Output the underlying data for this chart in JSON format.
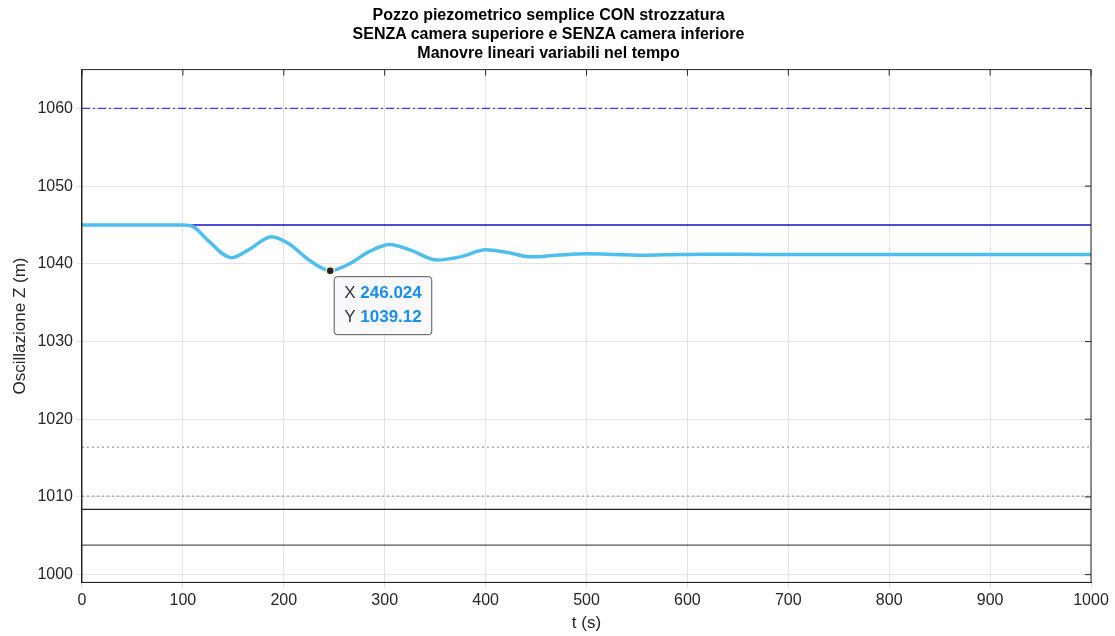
{
  "chart_data": {
    "type": "line",
    "title": "Pozzo piezometrico semplice CON strozzatura\nSENZA camera superiore e SENZA camera inferiore\nManovre lineari variabili nel tempo",
    "xlabel": "t (s)",
    "ylabel": "Oscillazione Z (m)",
    "series": [
      {
        "color": "#4dbeee",
        "x": [
          0,
          50,
          100,
          110,
          125,
          148,
          165,
          188,
          205,
          225,
          246,
          265,
          285,
          305,
          325,
          352,
          375,
          400,
          420,
          445,
          470,
          500,
          530,
          555,
          590,
          620,
          680,
          750,
          850,
          1000
        ],
        "values": [
          1045,
          1045,
          1045,
          1044.8,
          1043,
          1040.8,
          1041.8,
          1043.5,
          1042.6,
          1040.5,
          1039.12,
          1040,
          1041.6,
          1042.5,
          1041.8,
          1040.5,
          1040.9,
          1041.8,
          1041.5,
          1040.9,
          1041.1,
          1041.3,
          1041.2,
          1041.1,
          1041.2,
          1041.25,
          1041.2,
          1041.2,
          1041.2,
          1041.2
        ]
      }
    ],
    "ref_lines": [
      {
        "axis": "y",
        "value": 1060,
        "color": "#3b3bdf",
        "line_style": "dashdot"
      },
      {
        "axis": "y",
        "value": 1045,
        "color": "#1010c8",
        "line_style": "solid"
      },
      {
        "axis": "y",
        "value": 1016.4,
        "color": "#9a9a9a",
        "line_style": "dotted"
      },
      {
        "axis": "y",
        "value": 1010.1,
        "color": "#9a9a9a",
        "line_style": "dotted"
      },
      {
        "axis": "y",
        "value": 1008.4,
        "color": "#222222",
        "line_style": "solid"
      },
      {
        "axis": "y",
        "value": 1003.8,
        "color": "#555555",
        "line_style": "solid"
      }
    ],
    "annotations": [
      {
        "text": "X 246.024\nY 1039.12",
        "x": 246.024,
        "y": 1039.12
      }
    ],
    "xlim": [
      0,
      1000
    ],
    "xticks": [
      0,
      100,
      200,
      300,
      400,
      500,
      600,
      700,
      800,
      900,
      1000
    ],
    "ylim": [
      999,
      1065
    ],
    "yticks": [
      1000,
      1010,
      1020,
      1030,
      1040,
      1050,
      1060
    ],
    "grid": true,
    "legend": false,
    "marker": "none",
    "line_style": "solid"
  }
}
